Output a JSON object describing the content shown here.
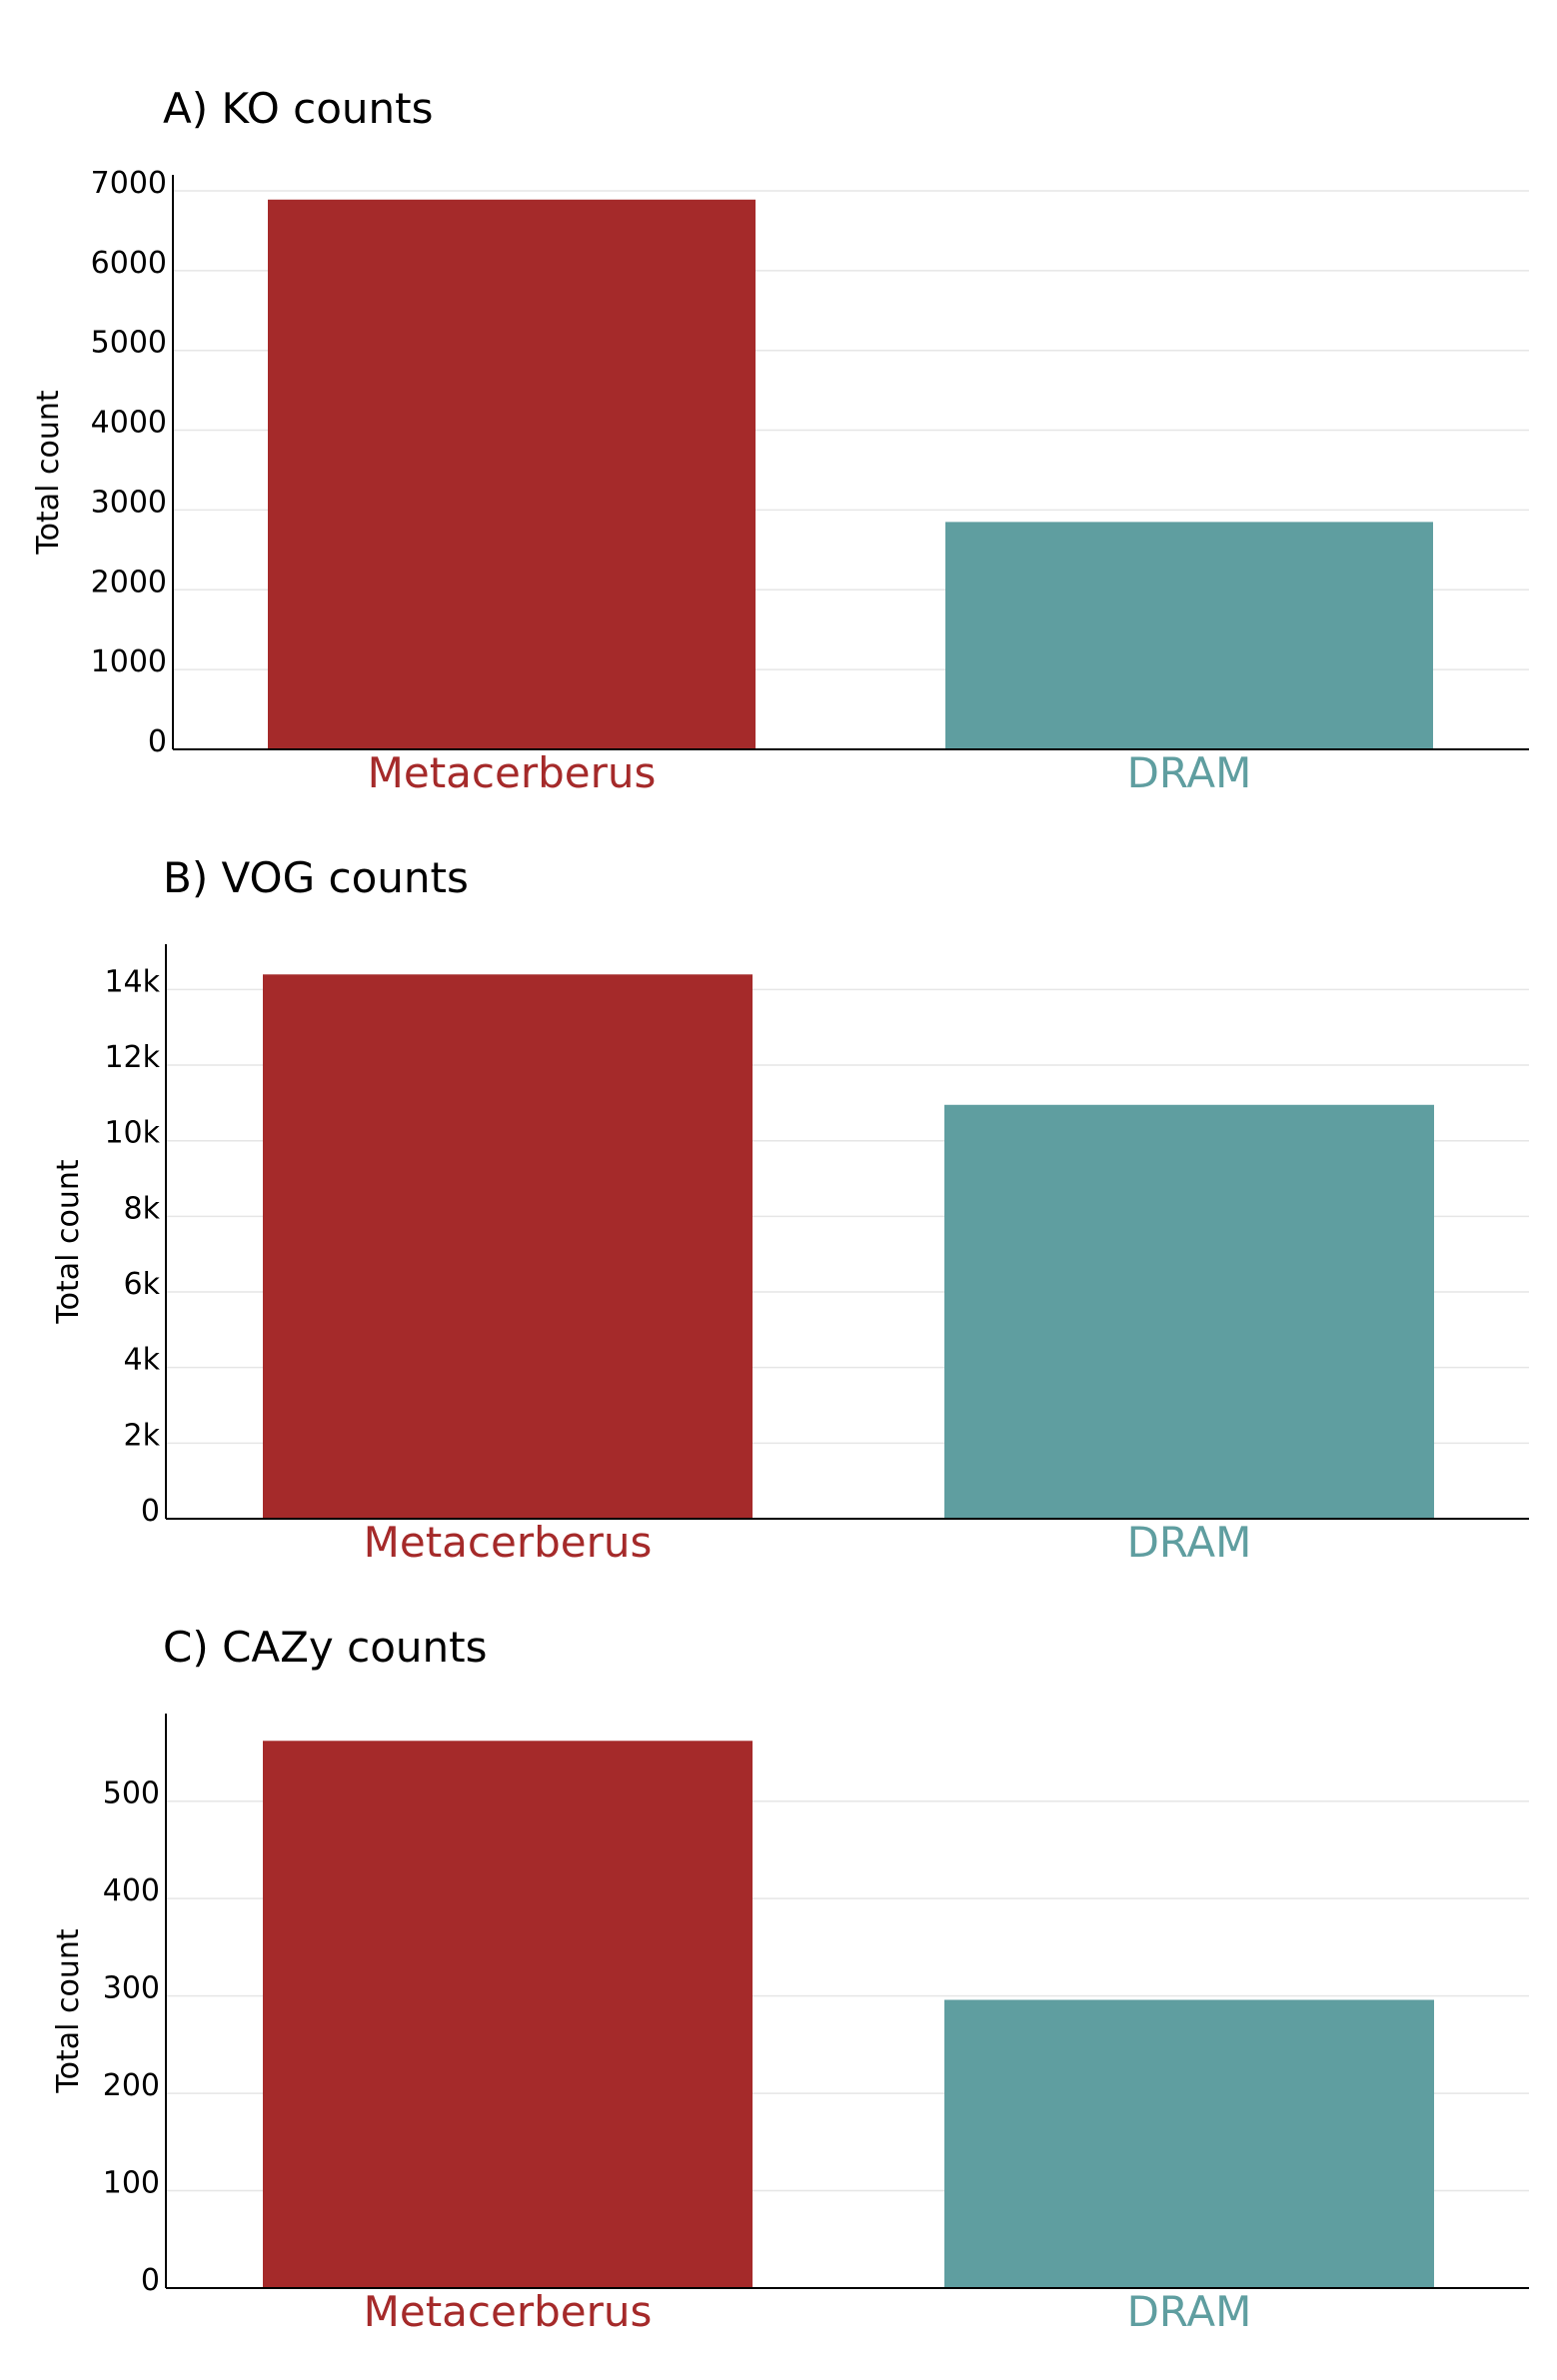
{
  "chart_data": [
    {
      "type": "bar",
      "title": "A) KO counts",
      "ylabel": "Total count",
      "xlabel": "",
      "categories": [
        "Metacerberus",
        "DRAM"
      ],
      "values": [
        6890,
        2850
      ],
      "ylim": [
        0,
        7200
      ],
      "yticks": [
        0,
        1000,
        2000,
        3000,
        4000,
        5000,
        6000,
        7000
      ],
      "ytick_labels": [
        "0",
        "1000",
        "2000",
        "3000",
        "4000",
        "5000",
        "6000",
        "7000"
      ],
      "grid": true,
      "legend": "none"
    },
    {
      "type": "bar",
      "title": "B) VOG counts",
      "ylabel": "Total count",
      "xlabel": "",
      "categories": [
        "Metacerberus",
        "DRAM"
      ],
      "values": [
        14400,
        10950
      ],
      "ylim": [
        0,
        15200
      ],
      "yticks": [
        0,
        2000,
        4000,
        6000,
        8000,
        10000,
        12000,
        14000
      ],
      "ytick_labels": [
        "0",
        "2k",
        "4k",
        "6k",
        "8k",
        "10k",
        "12k",
        "14k"
      ],
      "grid": true,
      "legend": "none"
    },
    {
      "type": "bar",
      "title": "C) CAZy counts",
      "ylabel": "Total count",
      "xlabel": "",
      "categories": [
        "Metacerberus",
        "DRAM"
      ],
      "values": [
        562,
        296
      ],
      "ylim": [
        0,
        590
      ],
      "yticks": [
        0,
        100,
        200,
        300,
        400,
        500
      ],
      "ytick_labels": [
        "0",
        "100",
        "200",
        "300",
        "400",
        "500"
      ],
      "grid": true,
      "legend": "none"
    }
  ],
  "colors": {
    "Metacerberus": "#a52a2a",
    "DRAM": "#5f9ea0"
  }
}
